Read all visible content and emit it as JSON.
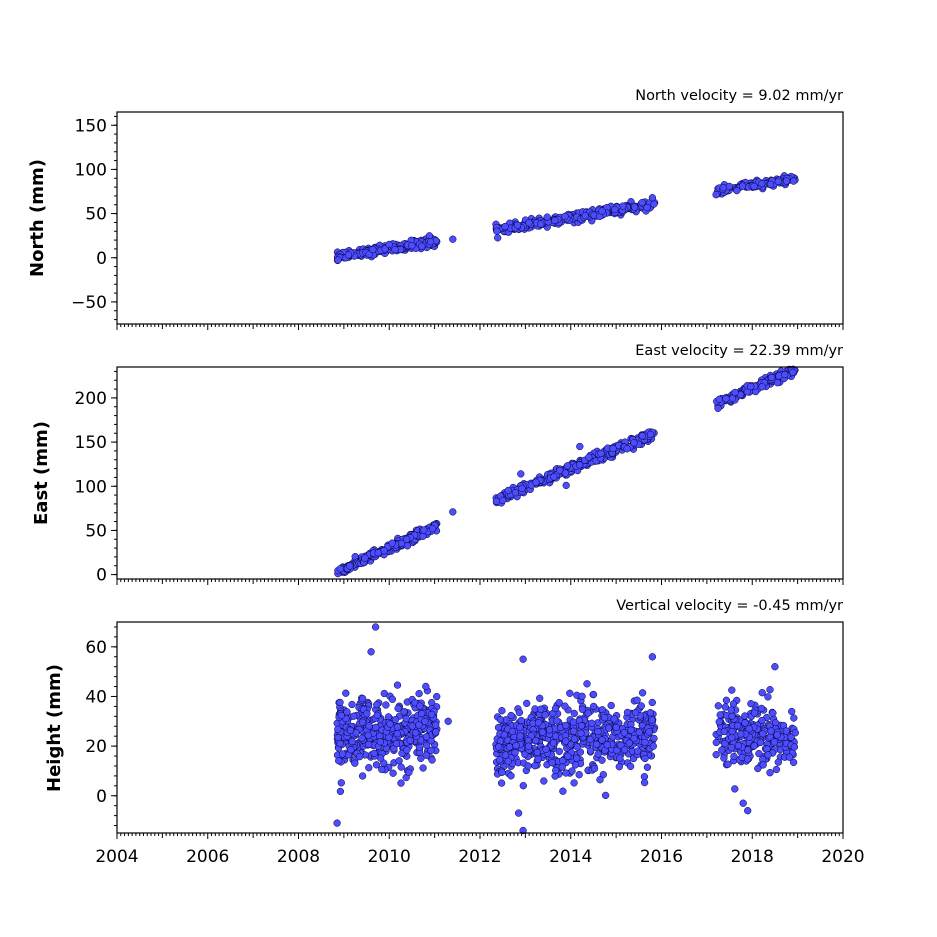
{
  "colors": {
    "point_fill": "#4d4dff",
    "point_edge": "#000033",
    "frame": "#000000",
    "background": "#ffffff"
  },
  "chart_data": [
    {
      "type": "scatter",
      "title": "North velocity = 9.02 mm/yr",
      "xlabel": "",
      "ylabel": "North (mm)",
      "xlim": [
        2004,
        2020
      ],
      "ylim": [
        -75,
        165
      ],
      "yticks": [
        -50,
        0,
        50,
        100,
        150
      ],
      "xticks": [],
      "grid": false,
      "series": [
        {
          "segments": [
            {
              "x0": 2008.85,
              "x1": 2011.05,
              "y0": 1,
              "y1": 19,
              "count": 220,
              "noise": 2.5
            },
            {
              "x0": 2012.35,
              "x1": 2015.85,
              "y0": 31,
              "y1": 61,
              "count": 300,
              "noise": 2.5
            },
            {
              "x0": 2017.2,
              "x1": 2018.95,
              "y0": 75,
              "y1": 90,
              "count": 140,
              "noise": 2.0
            }
          ],
          "outliers": [
            [
              2011.4,
              21
            ],
            [
              2015.8,
              68
            ]
          ]
        }
      ]
    },
    {
      "type": "scatter",
      "title": "East velocity = 22.39 mm/yr",
      "xlabel": "",
      "ylabel": "East (mm)",
      "xlim": [
        2004,
        2020
      ],
      "ylim": [
        -5,
        235
      ],
      "yticks": [
        0,
        50,
        100,
        150,
        200
      ],
      "xticks": [],
      "grid": false,
      "series": [
        {
          "segments": [
            {
              "x0": 2008.85,
              "x1": 2011.05,
              "y0": 3,
              "y1": 55,
              "count": 220,
              "noise": 2.5
            },
            {
              "x0": 2012.35,
              "x1": 2015.85,
              "y0": 84,
              "y1": 160,
              "count": 300,
              "noise": 3.0
            },
            {
              "x0": 2017.2,
              "x1": 2018.95,
              "y0": 193,
              "y1": 232,
              "count": 140,
              "noise": 2.5
            }
          ],
          "outliers": [
            [
              2011.4,
              71
            ],
            [
              2012.9,
              114
            ],
            [
              2014.2,
              145
            ],
            [
              2013.9,
              101
            ]
          ]
        }
      ]
    },
    {
      "type": "scatter",
      "title": "Vertical velocity = -0.45 mm/yr",
      "xlabel": "",
      "ylabel": "Height (mm)",
      "xlim": [
        2004,
        2020
      ],
      "ylim": [
        -15,
        70
      ],
      "yticks": [
        0,
        20,
        40,
        60
      ],
      "xticks": [
        "2004",
        "2006",
        "2008",
        "2010",
        "2012",
        "2014",
        "2016",
        "2018",
        "2020"
      ],
      "grid": false,
      "series": [
        {
          "segments": [
            {
              "x0": 2008.85,
              "x1": 2011.05,
              "y0": 25,
              "y1": 26,
              "count": 420,
              "noise": 7.0
            },
            {
              "x0": 2012.35,
              "x1": 2015.85,
              "y0": 22,
              "y1": 24,
              "count": 620,
              "noise": 7.0
            },
            {
              "x0": 2017.2,
              "x1": 2018.95,
              "y0": 25,
              "y1": 24,
              "count": 260,
              "noise": 6.5
            }
          ],
          "outliers": [
            [
              2008.85,
              -11
            ],
            [
              2009.7,
              68
            ],
            [
              2009.6,
              58
            ],
            [
              2012.95,
              -14
            ],
            [
              2012.95,
              55
            ],
            [
              2012.85,
              -7
            ],
            [
              2015.8,
              56
            ],
            [
              2018.5,
              52
            ],
            [
              2011.3,
              30
            ],
            [
              2017.9,
              -6
            ],
            [
              2017.8,
              -3
            ]
          ]
        }
      ]
    }
  ]
}
